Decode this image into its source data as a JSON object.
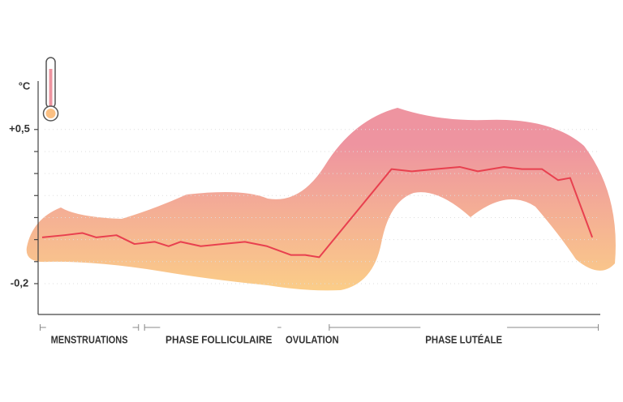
{
  "chart_data": {
    "type": "line",
    "y_label": "°C",
    "x": [
      0.2,
      1.3,
      2.2,
      2.9,
      3.9,
      4.8,
      5.8,
      6.5,
      7.1,
      8.1,
      9.2,
      10.3,
      11.4,
      12.6,
      13.3,
      14.0,
      17.6,
      18.6,
      19.8,
      21.0,
      21.9,
      23.2,
      24.1,
      25.1,
      25.9,
      26.5,
      27.6
    ],
    "series": [
      {
        "color": "#e8404f",
        "values": [
          0.01,
          0.02,
          0.03,
          0.01,
          0.02,
          -0.02,
          -0.01,
          -0.03,
          -0.01,
          -0.03,
          -0.02,
          -0.01,
          -0.03,
          -0.07,
          -0.07,
          -0.08,
          0.32,
          0.31,
          0.32,
          0.33,
          0.31,
          0.33,
          0.32,
          0.32,
          0.27,
          0.28,
          0.01
        ]
      }
    ],
    "xlim": [
      0,
      28
    ],
    "ylim": [
      -0.34,
      0.72
    ],
    "yticks": [
      {
        "value": 0.5,
        "label": "+0,5"
      },
      {
        "value": 0.4,
        "label": null
      },
      {
        "value": 0.3,
        "label": null
      },
      {
        "value": 0.2,
        "label": null
      },
      {
        "value": 0.1,
        "label": null
      },
      {
        "value": 0,
        "label": null
      },
      {
        "value": -0.1,
        "label": null
      },
      {
        "value": -0.2,
        "label": "-0,2"
      }
    ],
    "phases": [
      {
        "label": "MENSTRUATIONS",
        "start": 0.1,
        "end": 5.0
      },
      {
        "label": "PHASE FOLLICULAIRE",
        "start": 5.3,
        "end": 12.7
      },
      {
        "label": "OVULATION",
        "start": 13.0,
        "end": 14.3
      },
      {
        "label": "PHASE LUTÉALE",
        "start": 14.5,
        "end": 27.9
      }
    ]
  }
}
